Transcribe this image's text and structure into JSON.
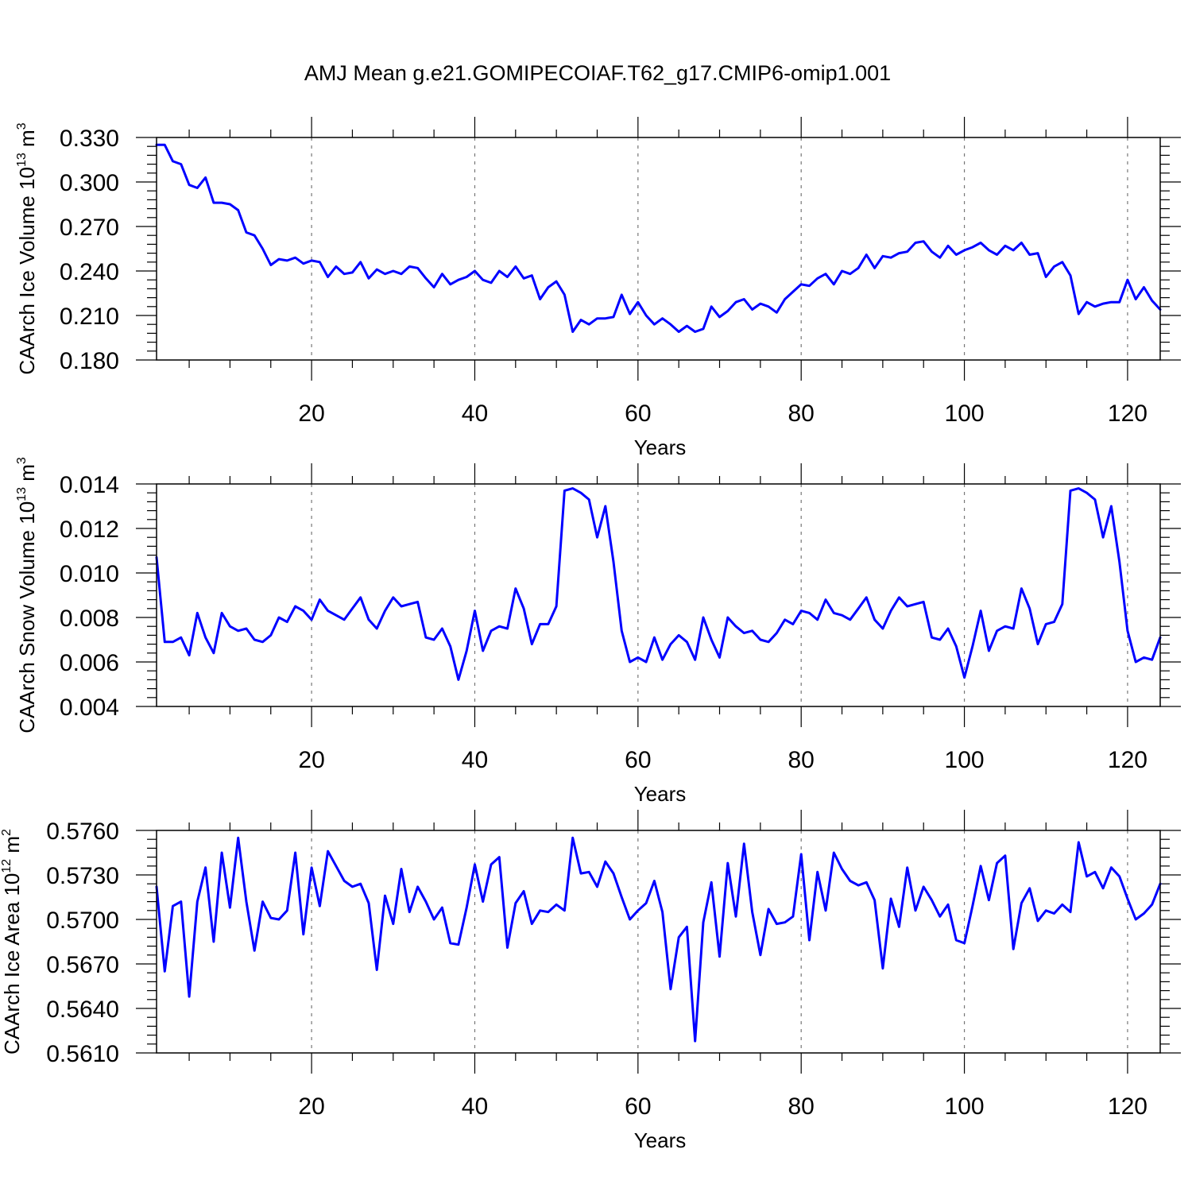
{
  "title": "AMJ Mean g.e21.GOMIPECOIAF.T62_g17.CMIP6-omip1.001",
  "colors": {
    "line": "#0000ff",
    "axis": "#000000",
    "grid": "#777777"
  },
  "chart_data": [
    {
      "type": "line",
      "xlabel": "Years",
      "ylabel": "CAArch Ice Volume 10",
      "ylabel_exp": "13",
      "ylabel_unit": " m",
      "ylabel_unit_exp": "3",
      "xlim": [
        1,
        124
      ],
      "ylim": [
        0.18,
        0.33
      ],
      "xticks": [
        20,
        40,
        60,
        80,
        100,
        120
      ],
      "xtick_labels": [
        "20",
        "40",
        "60",
        "80",
        "100",
        "120"
      ],
      "yticks": [
        0.18,
        0.21,
        0.24,
        0.27,
        0.3,
        0.33
      ],
      "ytick_labels": [
        "0.180",
        "0.210",
        "0.240",
        "0.270",
        "0.300",
        "0.330"
      ],
      "grid": "vertical dashed at major x ticks",
      "series": [
        {
          "name": "Ice Volume",
          "x_start": 1,
          "values": [
            0.325,
            0.325,
            0.314,
            0.312,
            0.298,
            0.296,
            0.303,
            0.286,
            0.286,
            0.285,
            0.281,
            0.266,
            0.264,
            0.255,
            0.244,
            0.248,
            0.247,
            0.249,
            0.245,
            0.247,
            0.246,
            0.236,
            0.243,
            0.238,
            0.239,
            0.246,
            0.235,
            0.241,
            0.238,
            0.24,
            0.238,
            0.243,
            0.242,
            0.235,
            0.229,
            0.238,
            0.231,
            0.234,
            0.236,
            0.24,
            0.234,
            0.232,
            0.24,
            0.236,
            0.243,
            0.235,
            0.237,
            0.221,
            0.229,
            0.233,
            0.224,
            0.199,
            0.207,
            0.204,
            0.208,
            0.208,
            0.209,
            0.224,
            0.211,
            0.219,
            0.21,
            0.204,
            0.208,
            0.204,
            0.199,
            0.203,
            0.199,
            0.201,
            0.216,
            0.209,
            0.213,
            0.219,
            0.221,
            0.214,
            0.218,
            0.216,
            0.212,
            0.221,
            0.226,
            0.231,
            0.23,
            0.235,
            0.238,
            0.231,
            0.24,
            0.238,
            0.242,
            0.251,
            0.242,
            0.25,
            0.249,
            0.252,
            0.253,
            0.259,
            0.26,
            0.253,
            0.249,
            0.257,
            0.251,
            0.254,
            0.256,
            0.259,
            0.254,
            0.251,
            0.257,
            0.254,
            0.259,
            0.251,
            0.252,
            0.236,
            0.243,
            0.246,
            0.237,
            0.211,
            0.219,
            0.216,
            0.218,
            0.219,
            0.219,
            0.234,
            0.221,
            0.229,
            0.22,
            0.214
          ]
        }
      ]
    },
    {
      "type": "line",
      "xlabel": "Years",
      "ylabel": "CAArch Snow Volume 10",
      "ylabel_exp": "13",
      "ylabel_unit": " m",
      "ylabel_unit_exp": "3",
      "xlim": [
        1,
        124
      ],
      "ylim": [
        0.004,
        0.014
      ],
      "xticks": [
        20,
        40,
        60,
        80,
        100,
        120
      ],
      "xtick_labels": [
        "20",
        "40",
        "60",
        "80",
        "100",
        "120"
      ],
      "yticks": [
        0.004,
        0.006,
        0.008,
        0.01,
        0.012,
        0.014
      ],
      "ytick_labels": [
        "0.004",
        "0.006",
        "0.008",
        "0.010",
        "0.012",
        "0.014"
      ],
      "grid": "vertical dashed at major x ticks",
      "series": [
        {
          "name": "Snow Volume",
          "x_start": 1,
          "values": [
            0.0107,
            0.0069,
            0.0069,
            0.0071,
            0.0063,
            0.0082,
            0.0071,
            0.0064,
            0.0082,
            0.0076,
            0.0074,
            0.0075,
            0.007,
            0.0069,
            0.0072,
            0.008,
            0.0078,
            0.0085,
            0.0083,
            0.0079,
            0.0088,
            0.0083,
            0.0081,
            0.0079,
            0.0084,
            0.0089,
            0.0079,
            0.0075,
            0.0083,
            0.0089,
            0.0085,
            0.0086,
            0.0087,
            0.0071,
            0.007,
            0.0075,
            0.0067,
            0.0052,
            0.0065,
            0.0083,
            0.0065,
            0.0074,
            0.0076,
            0.0075,
            0.0093,
            0.0084,
            0.0068,
            0.0077,
            0.0077,
            0.0085,
            0.0137,
            0.0138,
            0.0136,
            0.0133,
            0.0116,
            0.013,
            0.0105,
            0.0074,
            0.006,
            0.0062,
            0.006,
            0.0071,
            0.0061,
            0.0068,
            0.0072,
            0.0069,
            0.0061,
            0.008,
            0.007,
            0.0062,
            0.008,
            0.0076,
            0.0073,
            0.0074,
            0.007,
            0.0069,
            0.0073,
            0.0079,
            0.0077,
            0.0083,
            0.0082,
            0.0079,
            0.0088,
            0.0082,
            0.0081,
            0.0079,
            0.0084,
            0.0089,
            0.0079,
            0.0075,
            0.0083,
            0.0089,
            0.0085,
            0.0086,
            0.0087,
            0.0071,
            0.007,
            0.0075,
            0.0067,
            0.0053,
            0.0067,
            0.0083,
            0.0065,
            0.0074,
            0.0076,
            0.0075,
            0.0093,
            0.0084,
            0.0068,
            0.0077,
            0.0078,
            0.0086,
            0.0137,
            0.0138,
            0.0136,
            0.0133,
            0.0116,
            0.013,
            0.0105,
            0.0074,
            0.006,
            0.0062,
            0.0061,
            0.0071
          ]
        }
      ]
    },
    {
      "type": "line",
      "xlabel": "Years",
      "ylabel": "CAArch Ice Area 10",
      "ylabel_exp": "12",
      "ylabel_unit": " m",
      "ylabel_unit_exp": "2",
      "xlim": [
        1,
        124
      ],
      "ylim": [
        0.561,
        0.576
      ],
      "xticks": [
        20,
        40,
        60,
        80,
        100,
        120
      ],
      "xtick_labels": [
        "20",
        "40",
        "60",
        "80",
        "100",
        "120"
      ],
      "yticks": [
        0.561,
        0.564,
        0.567,
        0.57,
        0.573,
        0.576
      ],
      "ytick_labels": [
        "0.5610",
        "0.5640",
        "0.5670",
        "0.5700",
        "0.5730",
        "0.5760"
      ],
      "grid": "vertical dashed at major x ticks",
      "series": [
        {
          "name": "Ice Area",
          "x_start": 1,
          "values": [
            0.5722,
            0.5665,
            0.5709,
            0.5712,
            0.5648,
            0.5712,
            0.5735,
            0.5685,
            0.5745,
            0.5708,
            0.5755,
            0.5712,
            0.5679,
            0.5712,
            0.5701,
            0.57,
            0.5706,
            0.5745,
            0.569,
            0.5735,
            0.5709,
            0.5746,
            0.5736,
            0.5726,
            0.5722,
            0.5724,
            0.5711,
            0.5666,
            0.5716,
            0.5697,
            0.5734,
            0.5705,
            0.5722,
            0.5712,
            0.57,
            0.5708,
            0.5684,
            0.5683,
            0.5708,
            0.5737,
            0.5712,
            0.5737,
            0.5742,
            0.5681,
            0.5711,
            0.5719,
            0.5697,
            0.5706,
            0.5705,
            0.571,
            0.5706,
            0.5755,
            0.5731,
            0.5732,
            0.5722,
            0.5739,
            0.5731,
            0.5715,
            0.57,
            0.5706,
            0.5711,
            0.5726,
            0.5705,
            0.5653,
            0.5688,
            0.5695,
            0.5618,
            0.5698,
            0.5725,
            0.5675,
            0.5738,
            0.5702,
            0.5751,
            0.5705,
            0.5676,
            0.5707,
            0.5697,
            0.5698,
            0.5702,
            0.5744,
            0.5686,
            0.5732,
            0.5706,
            0.5745,
            0.5734,
            0.5726,
            0.5723,
            0.5725,
            0.5713,
            0.5667,
            0.5714,
            0.5695,
            0.5735,
            0.5706,
            0.5722,
            0.5713,
            0.5702,
            0.571,
            0.5686,
            0.5684,
            0.5709,
            0.5736,
            0.5713,
            0.5738,
            0.5743,
            0.568,
            0.5711,
            0.5721,
            0.5699,
            0.5706,
            0.5704,
            0.571,
            0.5705,
            0.5752,
            0.5729,
            0.5732,
            0.5721,
            0.5735,
            0.5729,
            0.5714,
            0.57,
            0.5704,
            0.571,
            0.5724
          ]
        }
      ]
    }
  ]
}
